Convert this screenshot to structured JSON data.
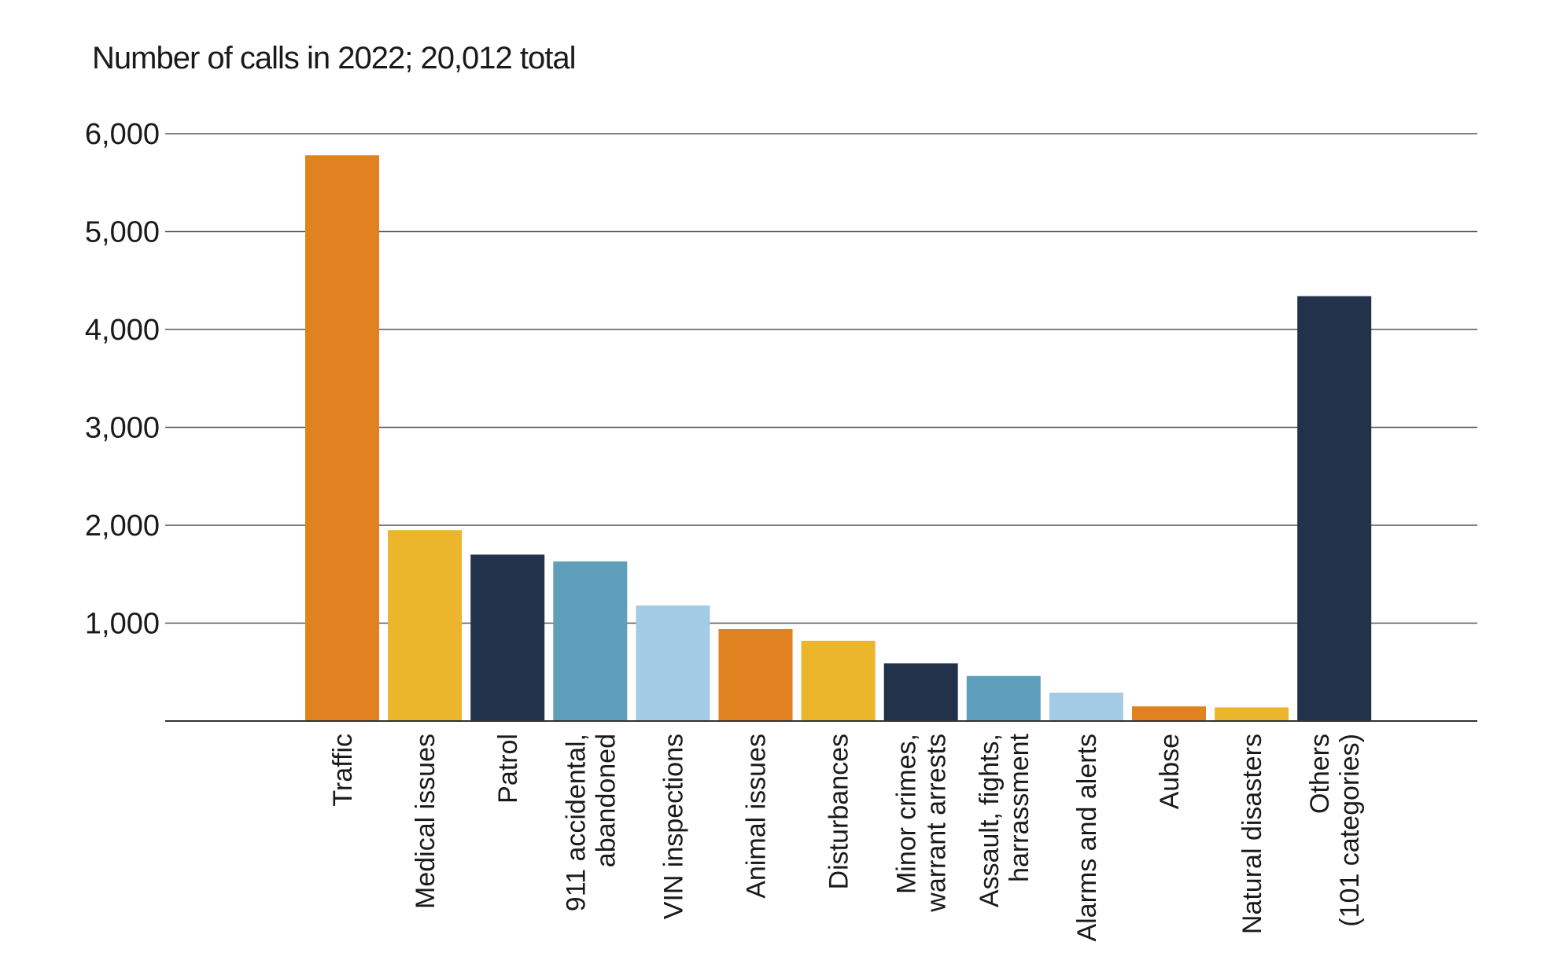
{
  "chart_data": {
    "type": "bar",
    "title": "Number of calls in 2022; 20,012 total",
    "xlabel": "",
    "ylabel": "",
    "ylim": [
      0,
      6000
    ],
    "yticks": [
      1000,
      2000,
      3000,
      4000,
      5000,
      6000
    ],
    "ytick_labels": [
      "1,000",
      "2,000",
      "3,000",
      "4,000",
      "5,000",
      "6,000"
    ],
    "grid": true,
    "categories": [
      "Traffic",
      "Medical issues",
      "Patrol",
      "911 accidental,\nabandoned",
      "VIN inspections",
      "Animal issues",
      "Disturbances",
      "Minor crimes,\nwarrant arrests",
      "Assault, fights,\nharrassment",
      "Alarms and alerts",
      "Aubse",
      "Natural disasters",
      "Others\n(101 categories)"
    ],
    "values": [
      5780,
      1950,
      1700,
      1630,
      1180,
      940,
      820,
      590,
      460,
      290,
      150,
      140,
      4340
    ],
    "colors": [
      "#E0821F",
      "#EBB52C",
      "#22324A",
      "#5F9FBC",
      "#A3CBE6",
      "#E0821F",
      "#EBB52C",
      "#22324A",
      "#5F9FBC",
      "#A3CBE6",
      "#E0821F",
      "#EBB52C",
      "#22324A"
    ]
  }
}
